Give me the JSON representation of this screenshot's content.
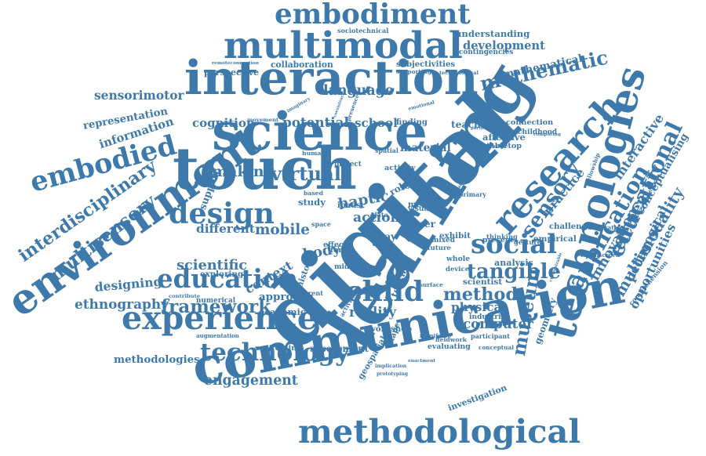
{
  "color": "#3e79ab",
  "words": [
    "communication",
    "learning",
    "digital",
    "interaction",
    "touch",
    "science",
    "technologies",
    "environment",
    "multimodal",
    "experience",
    "methodological",
    "embodiment",
    "design",
    "research",
    "embodied",
    "education",
    "technology",
    "social",
    "child",
    "tangible",
    "application",
    "mathematic",
    "educational",
    "method",
    "sensory",
    "museum",
    "computer",
    "framework",
    "ethnography",
    "designing",
    "mobile",
    "body",
    "virtual",
    "making",
    "haptic",
    "different",
    "scientific",
    "context",
    "engagement",
    "interdisciplinary",
    "multisensory",
    "information",
    "representation",
    "sensorimotor",
    "cognition",
    "potential",
    "school",
    "language",
    "collaboration",
    "perspective",
    "development",
    "understanding",
    "mathematical",
    "innovation",
    "multimodality",
    "opportunities",
    "conceptualising",
    "interactive",
    "elementary",
    "practice",
    "pedagogical",
    "investigation",
    "methodologies",
    "assessment",
    "workshop",
    "reality",
    "physical",
    "approach",
    "action",
    "teaching",
    "connection",
    "material",
    "finding",
    "affective",
    "tabletop",
    "childhood",
    "sociotechnical",
    "subjectivities",
    "supporting",
    "study",
    "paper",
    "media",
    "young",
    "activity",
    "ipads",
    "exhibit",
    "empirical",
    "challenge",
    "analysis",
    "scientist",
    "industrial",
    "evaluating",
    "fieldwork",
    "conceptual",
    "manifesto",
    "participant",
    "academic",
    "scaffolding",
    "exploring",
    "numerical",
    "augmentation",
    "implication",
    "prototyping",
    "geospatial",
    "enactment",
    "movement",
    "imaginary",
    "form",
    "space",
    "project",
    "human",
    "spatial",
    "based",
    "data",
    "emotional",
    "present",
    "geometry",
    "comprehension",
    "contingencies",
    "computing",
    "remoteconnection",
    "technological",
    "particular",
    "thinking",
    "gesture",
    "whole",
    "future",
    "mixed",
    "device",
    "support",
    "effect",
    "history",
    "parent",
    "contribute",
    "activities",
    "surface",
    "shape",
    "teacher",
    "role",
    "way",
    "user",
    "midas",
    "primary",
    "fellowship",
    "consideration",
    "touchscreen",
    "customizable",
    "presence",
    "coexistence",
    "conceptrelation",
    "visual",
    "developing"
  ]
}
